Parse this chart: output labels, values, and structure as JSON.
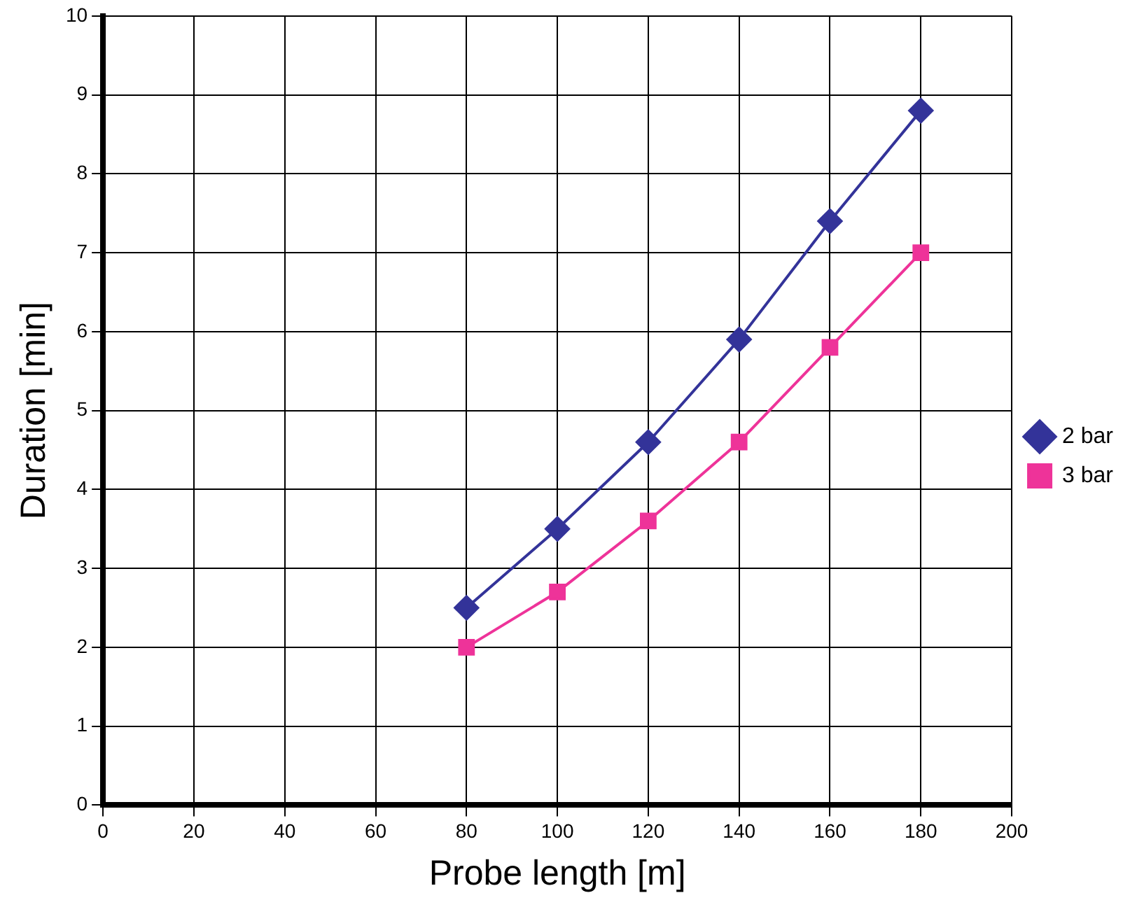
{
  "chart_data": {
    "type": "line",
    "xlabel": "Probe length [m]",
    "ylabel": "Duration [min]",
    "x": [
      80,
      100,
      120,
      140,
      160,
      180
    ],
    "series": [
      {
        "name": "2 bar",
        "color": "#333399",
        "marker": "diamond",
        "values": [
          2.5,
          3.5,
          4.6,
          5.9,
          7.4,
          8.8
        ]
      },
      {
        "name": "3 bar",
        "color": "#ee3399",
        "marker": "square",
        "values": [
          2.0,
          2.7,
          3.6,
          4.6,
          5.8,
          7.0
        ]
      }
    ],
    "xlim": [
      0,
      200
    ],
    "xticks": [
      0,
      20,
      40,
      60,
      80,
      100,
      120,
      140,
      160,
      180,
      200
    ],
    "ylim": [
      0,
      10
    ],
    "yticks": [
      0,
      1,
      2,
      3,
      4,
      5,
      6,
      7,
      8,
      9,
      10
    ],
    "grid": true,
    "legend": "right",
    "line_style": "solid"
  }
}
